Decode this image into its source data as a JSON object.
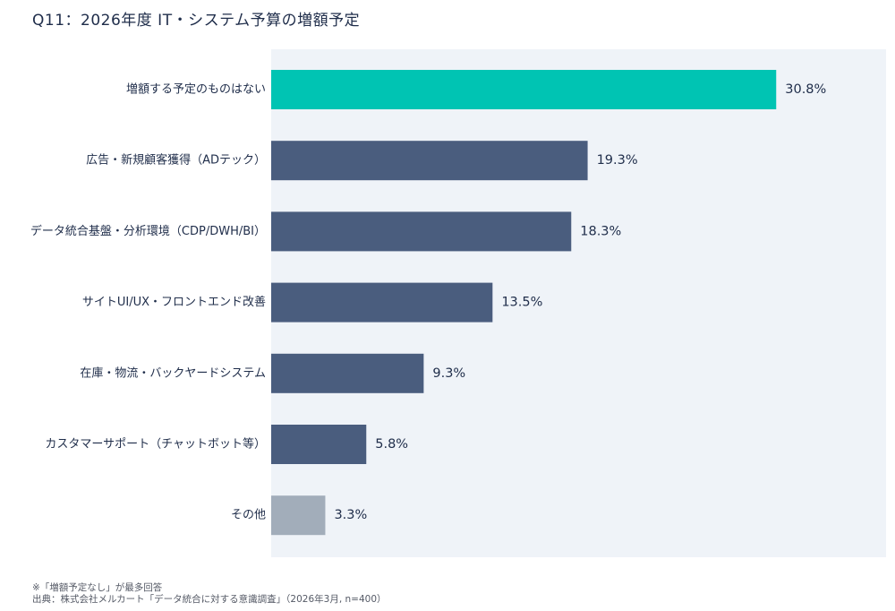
{
  "title": "Q11：2026年度 IT・システム予算の増額予定",
  "chart_data": {
    "type": "bar",
    "orientation": "horizontal",
    "categories": [
      "増額する予定のものはない",
      "広告・新規顧客獲得（ADテック）",
      "データ統合基盤・分析環境（CDP/DWH/BI）",
      "サイトUI/UX・フロントエンド改善",
      "在庫・物流・バックヤードシステム",
      "カスタマーサポート（チャットボット等）",
      "その他"
    ],
    "values": [
      30.8,
      19.3,
      18.3,
      13.5,
      9.3,
      5.8,
      3.3
    ],
    "value_labels": [
      "30.8%",
      "19.3%",
      "18.3%",
      "13.5%",
      "9.3%",
      "5.8%",
      "3.3%"
    ],
    "unit": "%",
    "xlim": [
      0,
      37.5
    ],
    "grid": false,
    "legend": "none",
    "colors": {
      "highlight": "#00c4b3",
      "default": "#4a5d7e",
      "other": "#a2adba",
      "plot_background": "#eff3f8"
    },
    "bar_color_roles": [
      "highlight",
      "default",
      "default",
      "default",
      "default",
      "default",
      "other"
    ]
  },
  "footnotes": {
    "note1": "※「増額予定なし」が最多回答",
    "note2": "出典：株式会社メルカート「データ統合に対する意識調査」（2026年3月, n=400）"
  }
}
